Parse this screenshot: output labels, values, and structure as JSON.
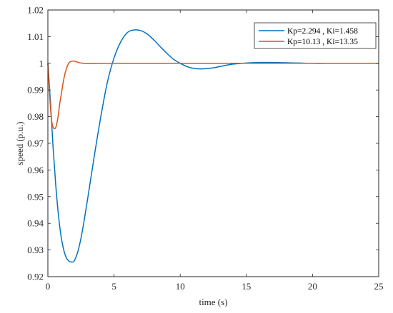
{
  "chart_data": {
    "type": "line",
    "xlabel": "time (s)",
    "ylabel": "speed (p.u.)",
    "xlim": [
      0,
      25
    ],
    "ylim": [
      0.92,
      1.02
    ],
    "x_ticks": [
      0,
      5,
      10,
      15,
      20,
      25
    ],
    "x_tick_labels": [
      "0",
      "5",
      "10",
      "15",
      "20",
      "25"
    ],
    "y_ticks": [
      0.92,
      0.93,
      0.94,
      0.95,
      0.96,
      0.97,
      0.98,
      0.99,
      1.0,
      1.01,
      1.02
    ],
    "y_tick_labels": [
      "0.92",
      "0.93",
      "0.94",
      "0.95",
      "0.96",
      "0.97",
      "0.98",
      "0.99",
      "1",
      "1.01",
      "1.02"
    ],
    "grid": false,
    "legend_position": "top-right",
    "series": [
      {
        "name": "Kp=2.294 , Ki=1.458",
        "color": "#0072BD",
        "x": [
          0,
          0.2,
          0.4,
          0.6,
          0.8,
          1.0,
          1.2,
          1.4,
          1.6,
          1.8,
          2.0,
          2.3,
          2.6,
          3.0,
          3.5,
          4.0,
          4.5,
          5.0,
          5.5,
          6.0,
          6.5,
          7.0,
          7.5,
          8.0,
          8.5,
          9.0,
          9.5,
          10.0,
          10.5,
          11.0,
          11.5,
          12.0,
          12.5,
          13.0,
          13.5,
          14.0,
          15.0,
          16.0,
          17.0,
          18.0,
          19.0,
          20.0,
          21.0,
          22.0,
          23.0,
          24.0,
          25.0
        ],
        "y": [
          1.0,
          0.985,
          0.968,
          0.954,
          0.943,
          0.935,
          0.93,
          0.927,
          0.9258,
          0.9255,
          0.926,
          0.93,
          0.937,
          0.949,
          0.965,
          0.98,
          0.993,
          1.002,
          1.008,
          1.0115,
          1.0125,
          1.0123,
          1.011,
          1.0088,
          1.0062,
          1.0037,
          1.0015,
          1.0,
          0.9988,
          0.9981,
          0.9979,
          0.998,
          0.9983,
          0.9988,
          0.9993,
          0.9997,
          1.0001,
          1.0003,
          1.0003,
          1.0002,
          1.0001,
          1.0,
          1.0,
          1.0,
          1.0,
          1.0,
          1.0
        ]
      },
      {
        "name": "Kp=10.13 , Ki=13.35",
        "color": "#D95319",
        "x": [
          0,
          0.1,
          0.2,
          0.3,
          0.4,
          0.5,
          0.6,
          0.7,
          0.8,
          0.9,
          1.0,
          1.2,
          1.4,
          1.6,
          1.8,
          2.0,
          2.2,
          2.4,
          2.7,
          3.0,
          3.5,
          4.0,
          5.0,
          7.0,
          10.0,
          15.0,
          20.0,
          25.0
        ],
        "y": [
          1.0,
          0.991,
          0.983,
          0.978,
          0.976,
          0.9755,
          0.976,
          0.978,
          0.981,
          0.985,
          0.988,
          0.994,
          0.998,
          1.0002,
          1.0008,
          1.0008,
          1.0005,
          1.0002,
          1.0,
          0.9999,
          0.9999,
          1.0,
          1.0,
          1.0,
          1.0,
          1.0,
          1.0,
          1.0
        ]
      }
    ]
  }
}
